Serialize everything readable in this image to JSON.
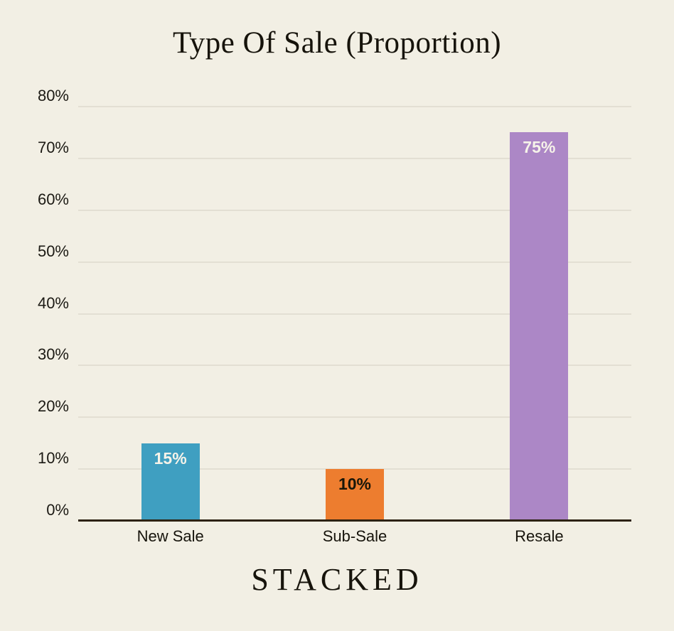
{
  "title": "Type Of Sale (Proportion)",
  "brand": "STACKED",
  "colors": {
    "background": "#f2efe4",
    "gridline": "#e3dfd3",
    "axis_line": "#2d2212",
    "text": "#16130b",
    "bar_new_sale": "#3f9fc1",
    "bar_sub_sale": "#ed7d2f",
    "bar_resale": "#ac87c6",
    "value_label_light": "#f6f3e9",
    "value_label_dark": "#181609"
  },
  "chart_data": {
    "type": "bar",
    "title": "Type Of Sale (Proportion)",
    "xlabel": "",
    "ylabel": "",
    "categories": [
      "New Sale",
      "Sub-Sale",
      "Resale"
    ],
    "values": [
      15,
      10,
      75
    ],
    "value_labels": [
      "15%",
      "10%",
      "75%"
    ],
    "value_label_colors": [
      "#f6f3e9",
      "#181609",
      "#f6f3e9"
    ],
    "bar_colors": [
      "#3f9fc1",
      "#ed7d2f",
      "#ac87c6"
    ],
    "ylim": [
      0,
      80
    ],
    "yticks": [
      0,
      10,
      20,
      30,
      40,
      50,
      60,
      70,
      80
    ],
    "ytick_labels": [
      "0%",
      "10%",
      "20%",
      "30%",
      "40%",
      "50%",
      "60%",
      "70%",
      "80%"
    ],
    "grid": true,
    "legend": false
  }
}
